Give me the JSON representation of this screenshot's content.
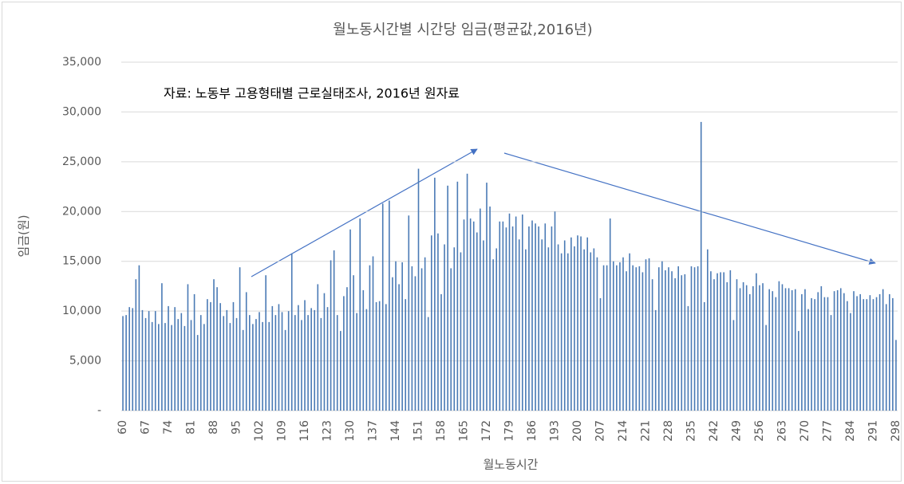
{
  "chart_data": {
    "type": "bar",
    "title": "월노동시간별 시간당 임금(평균값,2016년)",
    "annotation": "자료: 노동부 고용형태별 근로실태조사, 2016년 원자료",
    "x_label": "월노동시간",
    "y_label": "임금(원)",
    "color": "#4a7ab5",
    "grid": true,
    "ylim": [
      0,
      35000
    ],
    "yticks": [
      {
        "value": 0,
        "label": "-"
      },
      {
        "value": 5000,
        "label": "5,000"
      },
      {
        "value": 10000,
        "label": "10,000"
      },
      {
        "value": 15000,
        "label": "15,000"
      },
      {
        "value": 20000,
        "label": "20,000"
      },
      {
        "value": 25000,
        "label": "25,000"
      },
      {
        "value": 30000,
        "label": "30,000"
      },
      {
        "value": 35000,
        "label": "35,000"
      }
    ],
    "categories": [
      "60",
      null,
      null,
      null,
      null,
      null,
      null,
      "67",
      null,
      null,
      null,
      null,
      null,
      null,
      "74",
      null,
      null,
      null,
      null,
      null,
      null,
      "81",
      null,
      null,
      null,
      null,
      null,
      null,
      "88",
      null,
      null,
      null,
      null,
      null,
      null,
      "95",
      null,
      null,
      null,
      null,
      null,
      null,
      "102",
      null,
      null,
      null,
      null,
      null,
      null,
      "109",
      null,
      null,
      null,
      null,
      null,
      null,
      "116",
      null,
      null,
      null,
      null,
      null,
      null,
      "123",
      null,
      null,
      null,
      null,
      null,
      null,
      "130",
      null,
      null,
      null,
      null,
      null,
      null,
      "137",
      null,
      null,
      null,
      null,
      null,
      null,
      "144",
      null,
      null,
      null,
      null,
      null,
      null,
      "151",
      null,
      null,
      null,
      null,
      null,
      null,
      "158",
      null,
      null,
      null,
      null,
      null,
      null,
      "165",
      null,
      null,
      null,
      null,
      null,
      null,
      "172",
      null,
      null,
      null,
      null,
      null,
      null,
      "179",
      null,
      null,
      null,
      null,
      null,
      null,
      "186",
      null,
      null,
      null,
      null,
      null,
      null,
      "193",
      null,
      null,
      null,
      null,
      null,
      null,
      "200",
      null,
      null,
      null,
      null,
      null,
      null,
      "207",
      null,
      null,
      null,
      null,
      null,
      null,
      "214",
      null,
      null,
      null,
      null,
      null,
      null,
      "221",
      null,
      null,
      null,
      null,
      null,
      null,
      "228",
      null,
      null,
      null,
      null,
      null,
      null,
      "235",
      null,
      null,
      null,
      null,
      null,
      null,
      "242",
      null,
      null,
      null,
      null,
      null,
      null,
      "249",
      null,
      null,
      null,
      null,
      null,
      null,
      "256",
      null,
      null,
      null,
      null,
      null,
      null,
      "263",
      null,
      null,
      null,
      null,
      null,
      null,
      "270",
      null,
      null,
      null,
      null,
      null,
      null,
      "277",
      null,
      null,
      null,
      null,
      null,
      null,
      "284",
      null,
      null,
      null,
      null,
      null,
      null,
      "291",
      null,
      null,
      null,
      null,
      null,
      null,
      "298"
    ],
    "values": [
      9500,
      9600,
      10400,
      10300,
      13200,
      14600,
      10100,
      9300,
      10000,
      8900,
      10000,
      8700,
      12800,
      8800,
      10500,
      8600,
      10400,
      9200,
      9800,
      8500,
      12700,
      9100,
      11700,
      7600,
      9600,
      8700,
      11200,
      10900,
      13200,
      12400,
      10800,
      9500,
      10100,
      8800,
      10900,
      9300,
      14400,
      8100,
      11900,
      9600,
      8700,
      9200,
      9900,
      8900,
      13600,
      8900,
      10500,
      9600,
      10700,
      9900,
      8100,
      10000,
      15800,
      9600,
      10600,
      9100,
      11100,
      9600,
      10300,
      10100,
      12700,
      9300,
      11800,
      10400,
      15100,
      16100,
      9600,
      8000,
      11500,
      12400,
      18200,
      13600,
      9800,
      19300,
      12100,
      10200,
      14600,
      15500,
      10900,
      11000,
      20800,
      10700,
      21100,
      13400,
      15000,
      12700,
      14900,
      11200,
      19600,
      14500,
      13500,
      24300,
      14300,
      15400,
      9400,
      17600,
      23400,
      17800,
      11700,
      16700,
      22600,
      14300,
      16400,
      23000,
      15900,
      19200,
      23800,
      19300,
      19000,
      17900,
      20300,
      17100,
      22900,
      20500,
      15200,
      16300,
      19000,
      19000,
      18400,
      19800,
      18500,
      19500,
      17200,
      19700,
      16200,
      18500,
      19100,
      18800,
      18500,
      17200,
      18800,
      16400,
      18500,
      20000,
      16700,
      15800,
      17100,
      15800,
      17400,
      16500,
      17600,
      17500,
      16200,
      17400,
      15900,
      16300,
      15400,
      11300,
      14600,
      14600,
      19300,
      15000,
      14600,
      14900,
      15400,
      14000,
      15800,
      14600,
      14400,
      14500,
      13900,
      15200,
      15300,
      13200,
      10100,
      14400,
      15000,
      14100,
      14400,
      14000,
      13300,
      14500,
      13600,
      13700,
      10500,
      14500,
      14400,
      14500,
      29000,
      10900,
      16200,
      14000,
      13200,
      13800,
      13900,
      13900,
      12900,
      14100,
      9100,
      13200,
      12300,
      12900,
      12600,
      11700,
      12500,
      13800,
      12600,
      12800,
      8600,
      12200,
      12000,
      11400,
      13000,
      12700,
      12300,
      12300,
      12100,
      12200,
      8000,
      11700,
      12200,
      10200,
      11300,
      11200,
      11900,
      12500,
      11400,
      11400,
      9600,
      12000,
      12100,
      12300,
      11800,
      11000,
      9800,
      12000,
      11500,
      11700,
      11200,
      11200,
      11600,
      11200,
      11400,
      11700,
      12200,
      10700,
      11700,
      11300,
      7100
    ]
  }
}
